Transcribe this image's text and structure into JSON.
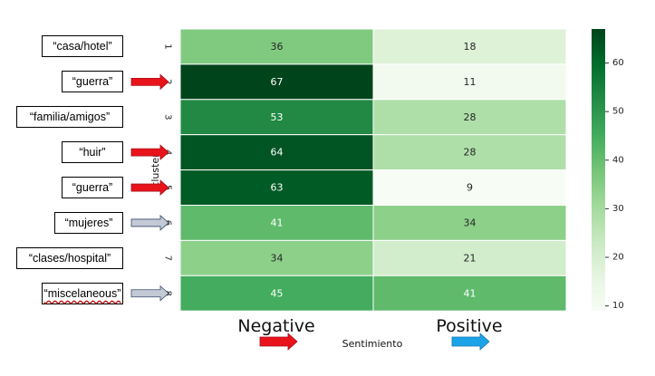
{
  "annotations": [
    {
      "text": "“casa/hotel”",
      "arrow": "none"
    },
    {
      "text": "“guerra”",
      "arrow": "red"
    },
    {
      "text": "“familia/amigos”",
      "arrow": "none"
    },
    {
      "text": "“huir”",
      "arrow": "red"
    },
    {
      "text": "“guerra”",
      "arrow": "red"
    },
    {
      "text": "“mujeres”",
      "arrow": "gray"
    },
    {
      "text": "“clases/hospital”",
      "arrow": "none"
    },
    {
      "text": "“miscelaneous”",
      "arrow": "gray"
    }
  ],
  "colors": {
    "red_arrow": "#e8131b",
    "blue_arrow": "#1ba3e8",
    "gray_arrow": "#c3cad6"
  },
  "chart_data": {
    "type": "heatmap",
    "rows": [
      "1",
      "2",
      "3",
      "4",
      "5",
      "6",
      "7",
      "8"
    ],
    "columns": [
      "Negative",
      "Positive"
    ],
    "values": [
      [
        36,
        18
      ],
      [
        67,
        11
      ],
      [
        53,
        28
      ],
      [
        64,
        28
      ],
      [
        63,
        9
      ],
      [
        41,
        34
      ],
      [
        34,
        21
      ],
      [
        45,
        41
      ]
    ],
    "xlabel": "Sentimiento",
    "ylabel": "cluster",
    "colormap": "Greens",
    "vmin": 9,
    "vmax": 67,
    "colorbar_ticks": [
      10,
      20,
      30,
      40,
      50,
      60
    ]
  }
}
